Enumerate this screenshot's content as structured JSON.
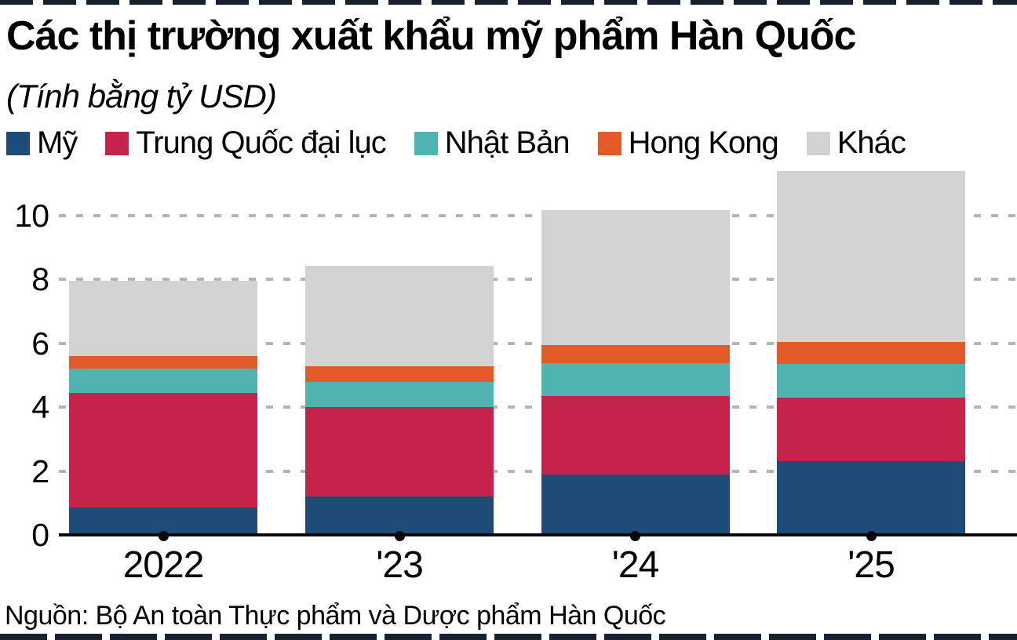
{
  "chart_data": {
    "type": "bar",
    "stacked": true,
    "title": "Các thị trường xuất khẩu mỹ phẩm Hàn Quốc",
    "subtitle": "(Tính bằng tỷ USD)",
    "categories": [
      "2022",
      "'23",
      "'24",
      "'25"
    ],
    "series": [
      {
        "name": "Mỹ",
        "color": "#1f4b79",
        "values": [
          0.85,
          1.2,
          1.9,
          2.3
        ]
      },
      {
        "name": "Trung Quốc đại lục",
        "color": "#c52349",
        "values": [
          3.6,
          2.8,
          2.45,
          2.0
        ]
      },
      {
        "name": "Nhật Bản",
        "color": "#4fb3af",
        "values": [
          0.75,
          0.78,
          1.02,
          1.05
        ]
      },
      {
        "name": "Hong Kong",
        "color": "#e2592a",
        "values": [
          0.4,
          0.5,
          0.58,
          0.68
        ]
      },
      {
        "name": "Khác",
        "color": "#d2d2d2",
        "values": [
          2.35,
          3.15,
          4.2,
          5.35
        ]
      }
    ],
    "totals": [
      7.95,
      8.43,
      10.15,
      11.38
    ],
    "yticks": [
      0,
      2,
      4,
      6,
      8,
      10
    ],
    "ylim": [
      0,
      11.4
    ],
    "grid": "dashed-horizontal",
    "legend_position": "top",
    "source": "Nguồn: Bộ An toàn Thực phẩm và Dược phẩm Hàn Quốc"
  },
  "colors": {
    "axis": "#0a0a0a",
    "gridline": "#b4b4b4",
    "text": "#000000",
    "background": "#ffffff"
  }
}
